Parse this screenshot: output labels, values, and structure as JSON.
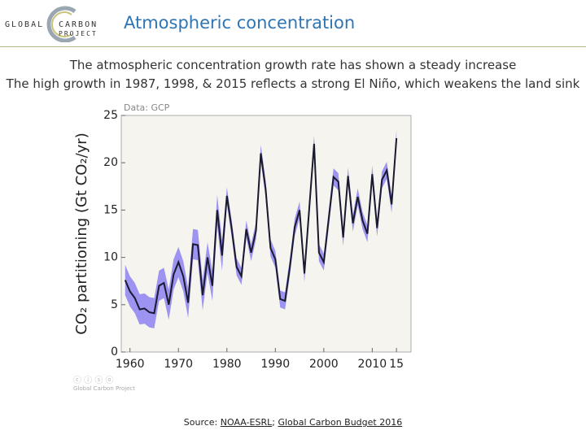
{
  "header": {
    "logo": [
      "GLOBAL",
      "CARBON",
      "PROJECT"
    ],
    "title": "Atmospheric concentration"
  },
  "subtitle": [
    "The atmospheric concentration growth rate has shown a steady increase",
    "The high growth in 1987, 1998, & 2015 reflects a strong El Niño, which weakens the land sink"
  ],
  "source": {
    "label": "Source: ",
    "links": [
      "NOAA-ESRL",
      "Global Carbon Budget 2016"
    ],
    "separator": "; "
  },
  "credit": "Global Carbon Project",
  "chart_data": {
    "type": "line",
    "annotation": "Data: GCP",
    "ylabel": "CO₂ partitioning (Gt CO₂/yr)",
    "x": [
      1959,
      1960,
      1961,
      1962,
      1963,
      1964,
      1965,
      1966,
      1967,
      1968,
      1969,
      1970,
      1971,
      1972,
      1973,
      1974,
      1975,
      1976,
      1977,
      1978,
      1979,
      1980,
      1981,
      1982,
      1983,
      1984,
      1985,
      1986,
      1987,
      1988,
      1989,
      1990,
      1991,
      1992,
      1993,
      1994,
      1995,
      1996,
      1997,
      1998,
      1999,
      2000,
      2001,
      2002,
      2003,
      2004,
      2005,
      2006,
      2007,
      2008,
      2009,
      2010,
      2011,
      2012,
      2013,
      2014,
      2015
    ],
    "series": [
      {
        "color": "#1a1a2e",
        "band_color": "#8c82f0",
        "values": [
          7.6,
          6.4,
          5.7,
          4.5,
          4.6,
          4.2,
          4.1,
          7.0,
          7.3,
          5.0,
          8.2,
          9.5,
          8.0,
          5.2,
          11.4,
          11.3,
          6.0,
          10.0,
          7.0,
          15.0,
          10.2,
          16.5,
          13.0,
          9.0,
          8.0,
          13.0,
          10.5,
          12.8,
          21.0,
          17.2,
          11.0,
          9.8,
          5.6,
          5.4,
          9.0,
          13.2,
          15.0,
          8.3,
          15.2,
          22.0,
          10.5,
          9.5,
          14.0,
          18.5,
          18.0,
          12.1,
          18.6,
          13.6,
          16.4,
          13.9,
          12.5,
          18.8,
          13.1,
          18.2,
          19.2,
          15.6,
          22.6
        ],
        "uncertainty": [
          1.6,
          1.6,
          1.6,
          1.6,
          1.6,
          1.6,
          1.6,
          1.6,
          1.6,
          1.6,
          1.6,
          1.6,
          1.6,
          1.6,
          1.6,
          1.6,
          1.6,
          1.6,
          1.6,
          1.6,
          1.6,
          0.9,
          0.9,
          0.9,
          0.9,
          0.9,
          0.9,
          0.9,
          0.9,
          0.9,
          0.9,
          0.9,
          0.9,
          0.9,
          0.9,
          0.9,
          0.9,
          0.9,
          0.9,
          0.9,
          0.9,
          0.9,
          0.9,
          0.9,
          0.9,
          0.9,
          0.9,
          0.9,
          0.9,
          0.9,
          0.9,
          0.9,
          0.9,
          0.9,
          0.9,
          0.9,
          0.9
        ]
      }
    ],
    "xlim": [
      1958.2,
      2018
    ],
    "xticks": [
      1960,
      1970,
      1980,
      1990,
      2000,
      2010,
      {
        "value": 2015,
        "label": "15"
      }
    ],
    "ylim": [
      0,
      25
    ],
    "yticks": [
      0,
      5,
      10,
      15,
      20,
      25
    ],
    "background": "#f6f4ee"
  }
}
